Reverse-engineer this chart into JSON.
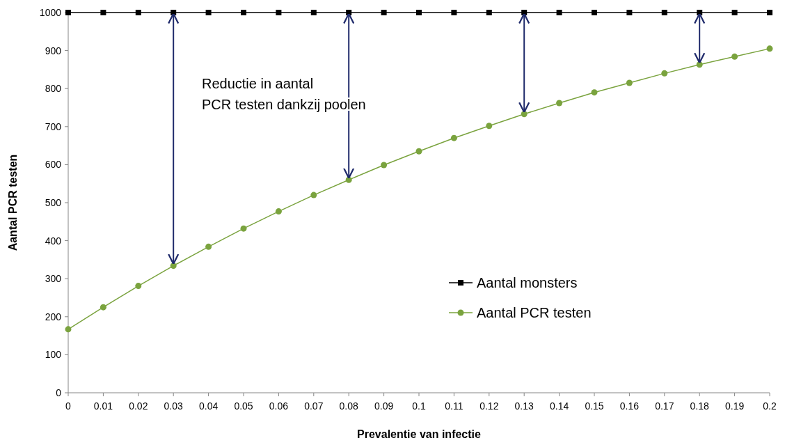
{
  "chart_data": {
    "type": "line",
    "xlabel": "Prevalentie van infectie",
    "ylabel": "Aantal PCR testen",
    "x": [
      0,
      0.01,
      0.02,
      0.03,
      0.04,
      0.05,
      0.06,
      0.07,
      0.08,
      0.09,
      0.1,
      0.11,
      0.12,
      0.13,
      0.14,
      0.15,
      0.16,
      0.17,
      0.18,
      0.19,
      0.2
    ],
    "series": [
      {
        "name": "Aantal monsters",
        "color": "#000000",
        "marker": "square",
        "values": [
          1000,
          1000,
          1000,
          1000,
          1000,
          1000,
          1000,
          1000,
          1000,
          1000,
          1000,
          1000,
          1000,
          1000,
          1000,
          1000,
          1000,
          1000,
          1000,
          1000,
          1000
        ]
      },
      {
        "name": "Aantal PCR testen",
        "color": "#7aa33e",
        "marker": "circle",
        "values": [
          167,
          225,
          281,
          334,
          384,
          432,
          477,
          520,
          560,
          599,
          635,
          670,
          702,
          733,
          762,
          790,
          815,
          840,
          863,
          884,
          905
        ]
      }
    ],
    "xlim": [
      0,
      0.2
    ],
    "xticks": [
      0,
      0.01,
      0.02,
      0.03,
      0.04,
      0.05,
      0.06,
      0.07,
      0.08,
      0.09,
      0.1,
      0.11,
      0.12,
      0.13,
      0.14,
      0.15,
      0.16,
      0.17,
      0.18,
      0.19,
      0.2
    ],
    "ylim": [
      0,
      1000
    ],
    "yticks": [
      0,
      100,
      200,
      300,
      400,
      500,
      600,
      700,
      800,
      900,
      1000
    ],
    "grid": false,
    "legend": "right",
    "annotations": [
      "Reductie in aantal\nPCR testen dankzij poolen"
    ]
  }
}
